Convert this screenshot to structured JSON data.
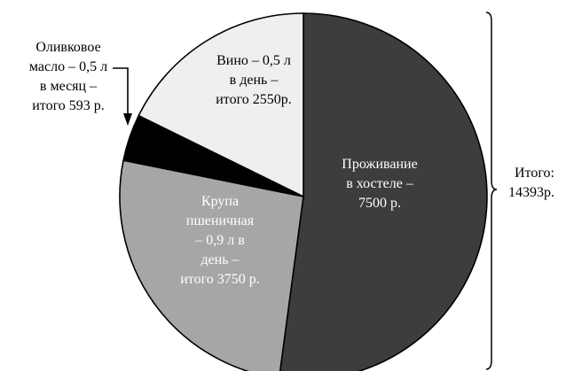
{
  "chart_data": {
    "type": "pie",
    "slices": [
      {
        "value": 7500,
        "color": "#3d3d3d",
        "text_color": "#ffffff",
        "label_lines": [
          "Проживание",
          "в хостеле –",
          "7500 р."
        ]
      },
      {
        "value": 3750,
        "color": "#a6a6a6",
        "text_color": "#ffffff",
        "label_lines": [
          "Крупа",
          "пшеничная",
          "– 0,9 л в",
          "день –",
          "итого 3750 р."
        ]
      },
      {
        "value": 593,
        "color": "#000000",
        "text_color": "#000000",
        "label_lines": [
          "Оливковое",
          "масло – 0,5 л",
          "в месяц –",
          "итого 593 р."
        ]
      },
      {
        "value": 2550,
        "color": "#efefef",
        "text_color": "#000000",
        "label_lines": [
          "Вино – 0,5 л",
          "в день –",
          "итого 2550р."
        ]
      }
    ],
    "total_label_lines": [
      "Итого:",
      "14393р."
    ],
    "legend": "none",
    "grid": false
  }
}
